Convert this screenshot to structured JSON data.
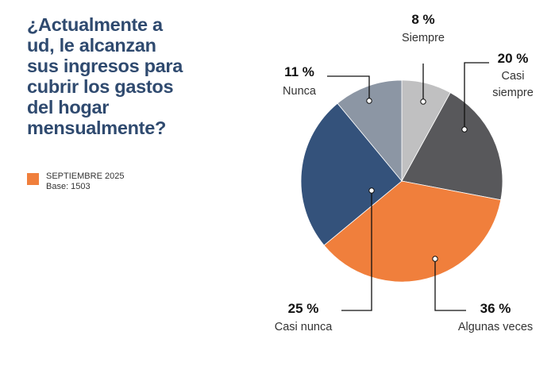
{
  "header": {
    "title_lines": [
      "¿Actualmente a",
      "ud, le alcanzan",
      "sus ingresos para",
      "cubrir los gastos",
      "del hogar",
      "mensualmente?"
    ]
  },
  "legend": {
    "series_label": "SEPTIEMBRE 2025",
    "base_label": "Base: 1503",
    "swatch_color": "#f07f3c"
  },
  "chart_data": {
    "type": "pie",
    "title": "¿Actualmente a ud, le alcanzan sus ingresos para cubrir los gastos del hogar mensualmente?",
    "series_name": "SEPTIEMBRE 2025",
    "base": 1503,
    "legend_position": "left",
    "start": "top, clockwise",
    "slices": [
      {
        "label": "Siempre",
        "label_lines": [
          "Siempre"
        ],
        "value": 8,
        "display": "8 %",
        "color": "#c0c0c1"
      },
      {
        "label": "Casi siempre",
        "label_lines": [
          "Casi",
          "siempre"
        ],
        "value": 20,
        "display": "20 %",
        "color": "#58585b"
      },
      {
        "label": "Algunas veces",
        "label_lines": [
          "Algunas veces"
        ],
        "value": 36,
        "display": "36 %",
        "color": "#f07f3c"
      },
      {
        "label": "Casi nunca",
        "label_lines": [
          "Casi nunca"
        ],
        "value": 25,
        "display": "25 %",
        "color": "#34527b"
      },
      {
        "label": "Nunca",
        "label_lines": [
          "Nunca"
        ],
        "value": 11,
        "display": "11 %",
        "color": "#8c96a4"
      }
    ]
  }
}
